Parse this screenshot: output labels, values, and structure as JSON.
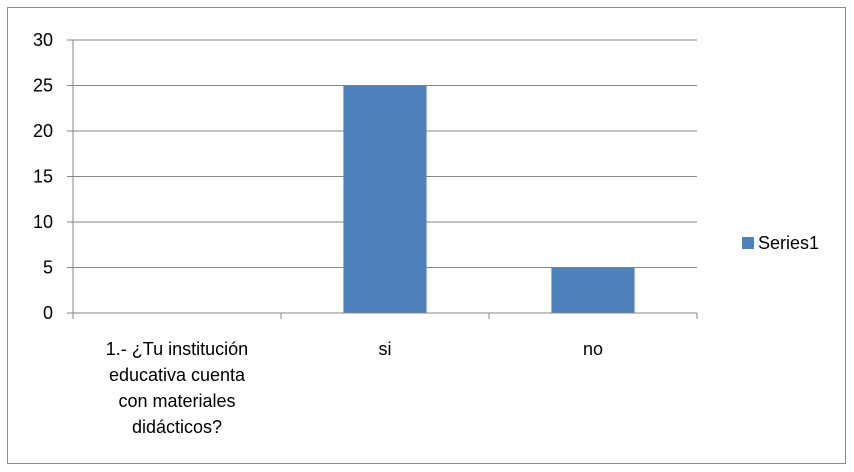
{
  "chart_data": {
    "type": "bar",
    "categories": [
      "1.- ¿Tu institución educativa cuenta con materiales didácticos?",
      "si",
      "no"
    ],
    "category_lines": [
      [
        "1.- ¿Tu institución",
        "educativa cuenta",
        "con materiales",
        "didácticos?"
      ],
      [
        "si"
      ],
      [
        "no"
      ]
    ],
    "series": [
      {
        "name": "Series1",
        "values": [
          0,
          25,
          5
        ],
        "color": "#4f81bd"
      }
    ],
    "ylim": [
      0,
      30
    ],
    "yticks": [
      0,
      5,
      10,
      15,
      20,
      25,
      30
    ],
    "grid": true,
    "legend": "right"
  }
}
